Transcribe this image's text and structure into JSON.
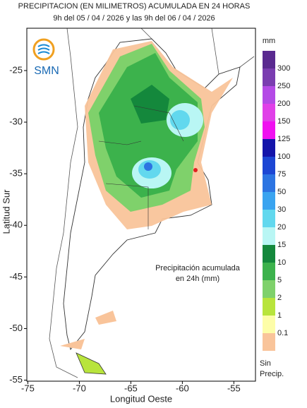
{
  "title": "PRECIPITACION (EN MILIMETROS) ACUMULADA EN 24 HORAS",
  "subtitle": "9h del 05 / 04 / 2026  y las 9h del 06 / 04 / 2026",
  "logo": "SMN",
  "map": {
    "xlabel": "Longitud Oeste",
    "ylabel": "Latitud Sur",
    "xlim": [
      -75.1,
      -52.9
    ],
    "ylim": [
      -55.1,
      -20.9
    ],
    "xticks": [
      -75,
      -70,
      -65,
      -60,
      -55
    ],
    "yticks": [
      -25,
      -30,
      -35,
      -40,
      -45,
      -50,
      -55
    ],
    "annotation": [
      "Precipitación acumulada",
      "en 24h (mm)"
    ]
  },
  "legend": {
    "unit": "mm",
    "levels": [
      0.1,
      1,
      2,
      5,
      10,
      15,
      20,
      30,
      50,
      75,
      100,
      125,
      150,
      200,
      250,
      300
    ],
    "colors": [
      "#f9c49a",
      "#fdfda8",
      "#b8e43c",
      "#7fd16b",
      "#3cb24c",
      "#14883c",
      "#b9f6f4",
      "#62d8ee",
      "#3aa4f0",
      "#2c74e2",
      "#1c46d4",
      "#1414aa",
      "#f010f0",
      "#e040e8",
      "#b44ae6",
      "#7a3db0",
      "#5a2a90"
    ],
    "no_precip": [
      "Sin",
      "Precip."
    ]
  }
}
